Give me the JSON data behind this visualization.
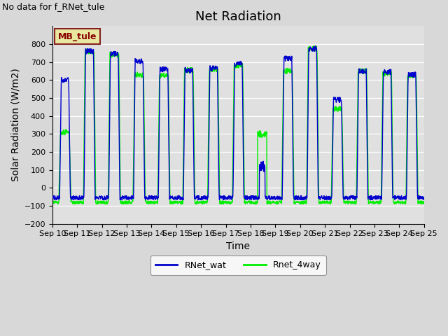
{
  "title": "Net Radiation",
  "xlabel": "Time",
  "ylabel": "Solar Radiation (W/m2)",
  "ylim": [
    -200,
    900
  ],
  "yticks": [
    -200,
    -100,
    0,
    100,
    200,
    300,
    400,
    500,
    600,
    700,
    800
  ],
  "xtick_labels": [
    "Sep 10",
    "Sep 11",
    "Sep 12",
    "Sep 13",
    "Sep 14",
    "Sep 15",
    "Sep 16",
    "Sep 17",
    "Sep 18",
    "Sep 19",
    "Sep 20",
    "Sep 21",
    "Sep 22",
    "Sep 23",
    "Sep 24",
    "Sep 25"
  ],
  "no_data_text": "No data for f_RNet_tule",
  "legend_label_text": "MB_tule",
  "line1_label": "RNet_wat",
  "line2_label": "Rnet_4way",
  "line1_color": "#0000cc",
  "line2_color": "#00ee00",
  "bg_color": "#e0e0e0",
  "legend_box_color": "#e8e8a0",
  "legend_box_edge": "#882222",
  "legend_text_color": "#880000",
  "title_fontsize": 13,
  "axis_label_fontsize": 10,
  "tick_fontsize": 8,
  "annotation_fontsize": 9,
  "figsize": [
    6.4,
    4.8
  ],
  "dpi": 100
}
